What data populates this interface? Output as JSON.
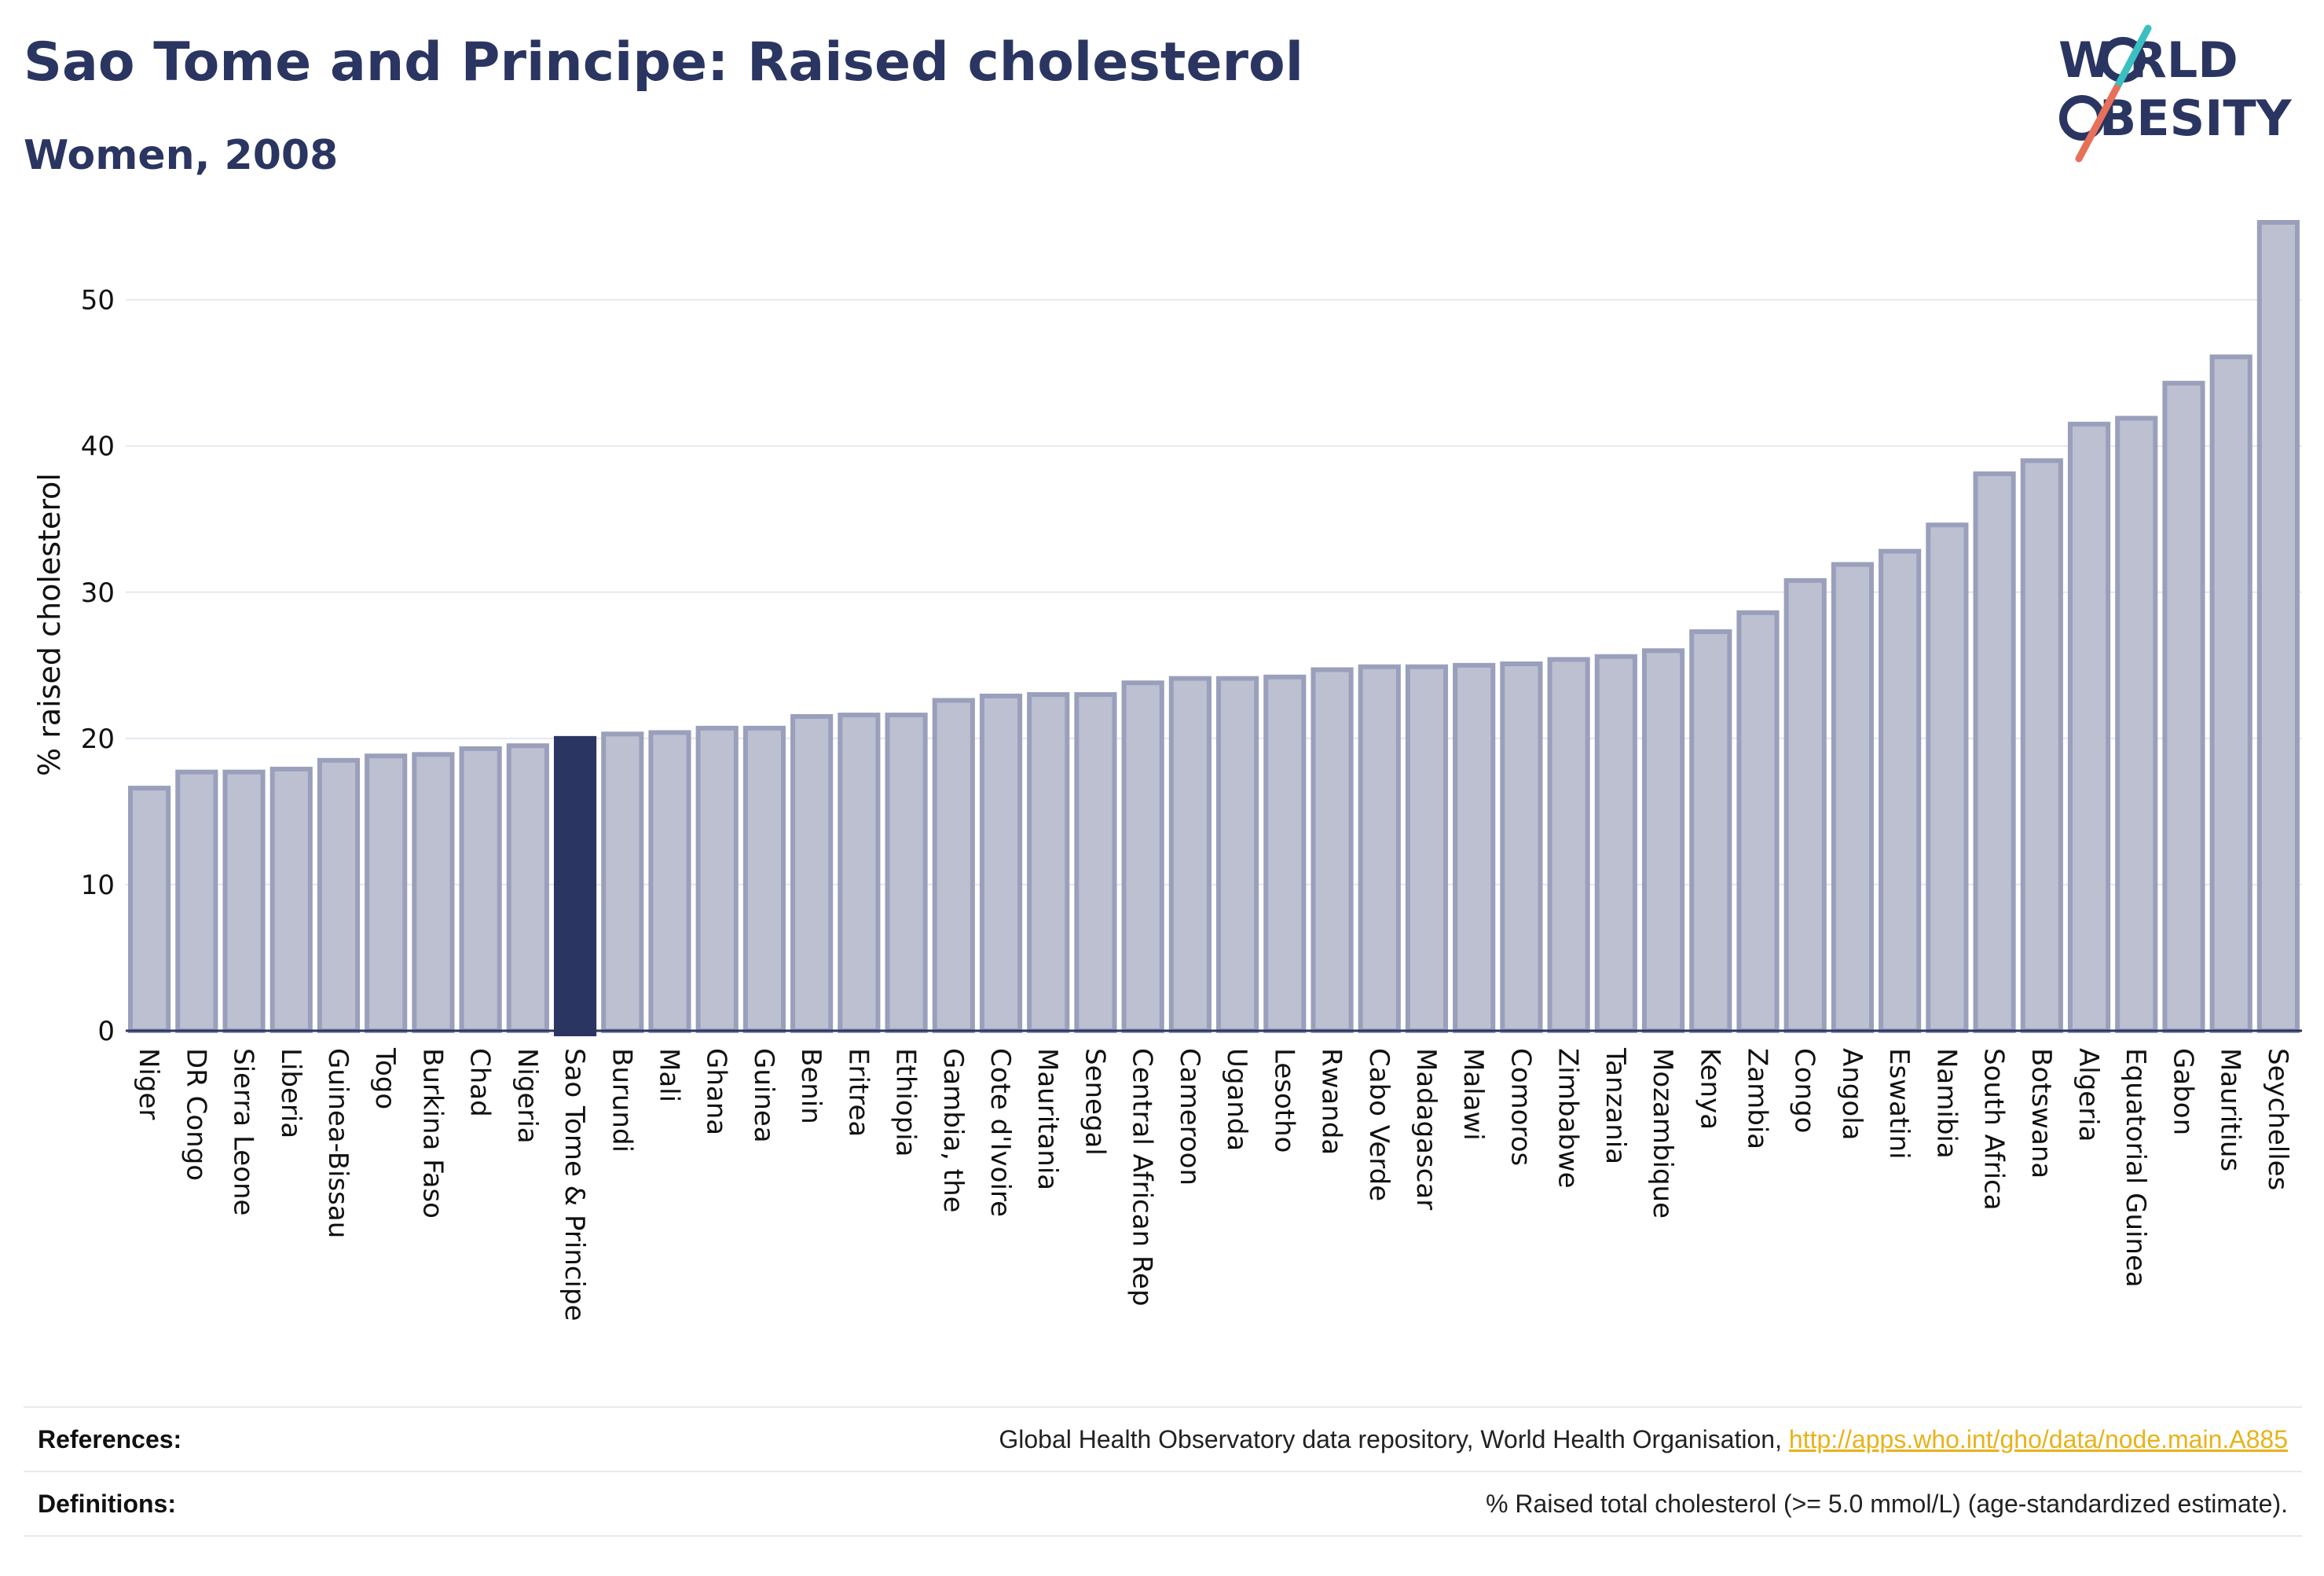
{
  "header": {
    "title": "Sao Tome and Principe: Raised cholesterol",
    "subtitle": "Women, 2008"
  },
  "logo": {
    "line1": "W RLD",
    "line2": "BESITY",
    "colors": {
      "text": "#2a3561",
      "slash_teal": "#3bbfc0",
      "slash_coral": "#e8705a"
    }
  },
  "colors": {
    "highlight": "#2a3561",
    "bar_fill": "#bcc0d1",
    "bar_stroke": "#9aa0bb",
    "grid": "#e4e7ee",
    "axis": "#2a3561",
    "link": "#e9b21a"
  },
  "chart_data": {
    "type": "bar",
    "title": "Sao Tome and Principe: Raised cholesterol",
    "subtitle": "Women, 2008",
    "xlabel": "",
    "ylabel": "% raised cholesterol",
    "ylim": [
      0,
      56
    ],
    "yticks": [
      0,
      10,
      20,
      30,
      40,
      50
    ],
    "grid": true,
    "highlight_category": "Sao Tome & Principe",
    "categories": [
      "Niger",
      "DR Congo",
      "Sierra Leone",
      "Liberia",
      "Guinea-Bissau",
      "Togo",
      "Burkina Faso",
      "Chad",
      "Nigeria",
      "Sao Tome & Principe",
      "Burundi",
      "Mali",
      "Ghana",
      "Guinea",
      "Benin",
      "Eritrea",
      "Ethiopia",
      "Gambia, the",
      "Cote d'Ivoire",
      "Mauritania",
      "Senegal",
      "Central African Rep",
      "Cameroon",
      "Uganda",
      "Lesotho",
      "Rwanda",
      "Cabo Verde",
      "Madagascar",
      "Malawi",
      "Comoros",
      "Zimbabwe",
      "Tanzania",
      "Mozambique",
      "Kenya",
      "Zambia",
      "Congo",
      "Angola",
      "Eswatini",
      "Namibia",
      "South Africa",
      "Botswana",
      "Algeria",
      "Equatorial Guinea",
      "Gabon",
      "Mauritius",
      "Seychelles"
    ],
    "values": [
      16.6,
      17.7,
      17.7,
      17.9,
      18.5,
      18.8,
      18.9,
      19.3,
      19.5,
      20.0,
      20.3,
      20.4,
      20.7,
      20.7,
      21.5,
      21.6,
      21.6,
      22.6,
      22.9,
      23.0,
      23.0,
      23.8,
      24.1,
      24.1,
      24.2,
      24.7,
      24.9,
      24.9,
      25.0,
      25.1,
      25.4,
      25.6,
      26.0,
      27.3,
      28.6,
      30.8,
      31.9,
      32.8,
      34.6,
      38.1,
      39.0,
      41.5,
      41.9,
      44.3,
      46.1,
      55.3
    ]
  },
  "footer": {
    "references_label": "References:",
    "references_text": "Global Health Observatory data repository, World Health Organisation, ",
    "references_link": "http://apps.who.int/gho/data/node.main.A885",
    "definitions_label": "Definitions:",
    "definitions_text": "% Raised total cholesterol (>= 5.0 mmol/L) (age-standardized estimate)."
  }
}
